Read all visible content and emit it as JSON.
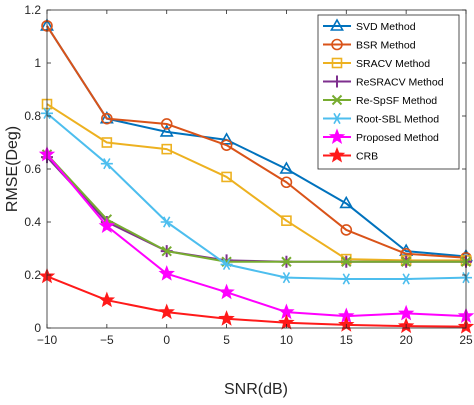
{
  "chart_data": {
    "type": "line",
    "xlabel": "SNR(dB)",
    "ylabel": "RMSE(Deg)",
    "xlim": [
      -10,
      25
    ],
    "ylim": [
      0,
      1.2
    ],
    "x": [
      -10,
      -5,
      0,
      5,
      10,
      15,
      20,
      25
    ],
    "xticks": [
      -10,
      -5,
      0,
      5,
      10,
      15,
      20,
      25
    ],
    "xtick_labels": [
      "−10",
      "−5",
      "0",
      "5",
      "10",
      "15",
      "20",
      "25"
    ],
    "yticks": [
      0,
      0.2,
      0.4,
      0.6,
      0.8,
      1,
      1.2
    ],
    "ytick_labels": [
      "0",
      "0.2",
      "0.4",
      "0.6",
      "0.8",
      "1",
      "1.2"
    ],
    "grid": false,
    "legend_position": "top-right",
    "series": [
      {
        "name": "SVD Method",
        "color": "#0072BD",
        "marker": "triangle",
        "values": [
          1.14,
          0.79,
          0.74,
          0.71,
          0.6,
          0.47,
          0.29,
          0.27
        ]
      },
      {
        "name": "BSR Method",
        "color": "#D95319",
        "marker": "circle",
        "values": [
          1.14,
          0.79,
          0.77,
          0.69,
          0.55,
          0.37,
          0.28,
          0.265
        ]
      },
      {
        "name": "SRACV Method",
        "color": "#EDB120",
        "marker": "square",
        "values": [
          0.845,
          0.7,
          0.675,
          0.57,
          0.405,
          0.26,
          0.255,
          0.255
        ]
      },
      {
        "name": "ReSRACV Method",
        "color": "#7E2F8E",
        "marker": "plus",
        "values": [
          0.645,
          0.4,
          0.29,
          0.255,
          0.25,
          0.25,
          0.25,
          0.25
        ]
      },
      {
        "name": "Re-SpSF Method",
        "color": "#77AC30",
        "marker": "cross",
        "values": [
          0.655,
          0.41,
          0.29,
          0.25,
          0.25,
          0.25,
          0.25,
          0.25
        ]
      },
      {
        "name": "Root-SBL Method",
        "color": "#4DBEEE",
        "marker": "asterisk",
        "values": [
          0.81,
          0.62,
          0.4,
          0.24,
          0.19,
          0.185,
          0.185,
          0.19
        ]
      },
      {
        "name": "Proposed Method",
        "color": "#FF00FF",
        "marker": "star",
        "values": [
          0.655,
          0.385,
          0.205,
          0.135,
          0.06,
          0.045,
          0.055,
          0.045
        ]
      },
      {
        "name": "CRB",
        "color": "#FF1A1A",
        "marker": "star",
        "values": [
          0.195,
          0.105,
          0.06,
          0.035,
          0.02,
          0.012,
          0.007,
          0.005
        ]
      }
    ]
  }
}
